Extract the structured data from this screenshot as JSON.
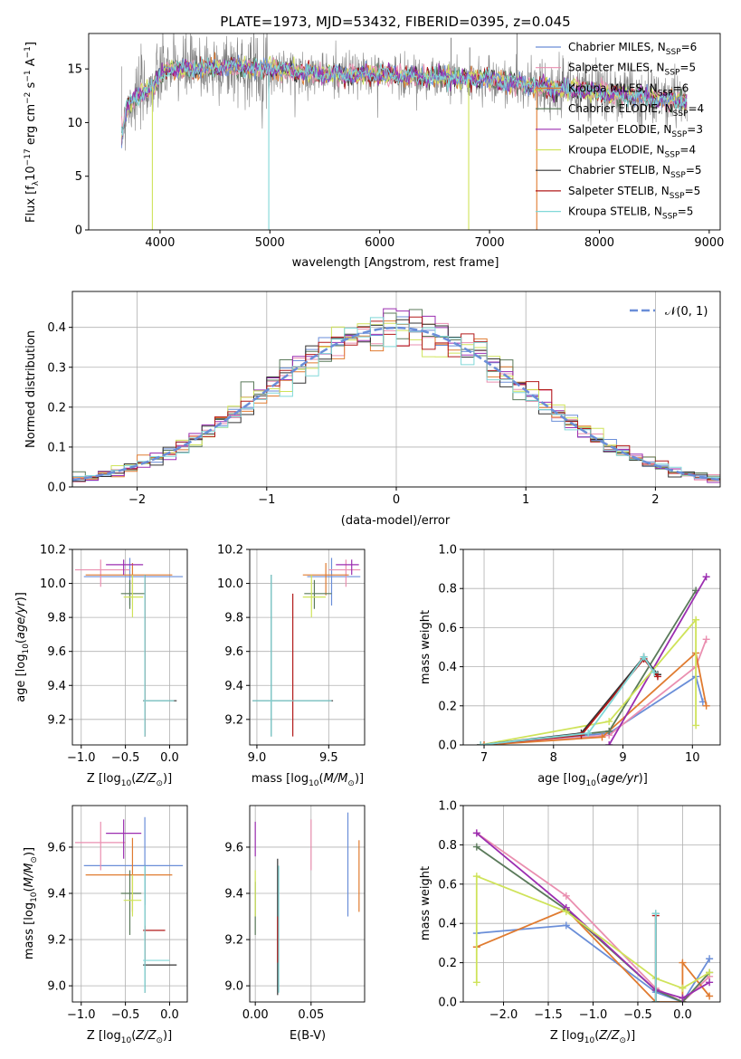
{
  "figure": {
    "title": "PLATE=1973, MJD=53432, FIBERID=0395, z=0.045"
  },
  "colors": {
    "chabrier_miles": "#6a8ed8",
    "salpeter_miles": "#ea8fb0",
    "kroupa_miles": "#e07b30",
    "chabrier_elodie": "#5a7a5a",
    "salpeter_elodie": "#9b2eb0",
    "kroupa_elodie": "#cfe35a",
    "chabrier_stelib": "#333333",
    "salpeter_stelib": "#b21a1a",
    "kroupa_stelib": "#80d8d8",
    "gauss": "#6a8ed8",
    "data": "#808080"
  },
  "chart_data": [
    {
      "id": "spectrum",
      "type": "line",
      "title": "PLATE=1973, MJD=53432, FIBERID=0395, z=0.045",
      "xlabel": "wavelength [Angstrom, rest frame]",
      "ylabel_parts": [
        "Flux [f",
        "λ",
        "10",
        "−17",
        " erg cm",
        "−2",
        " s",
        "−1",
        " A",
        "−1",
        "]"
      ],
      "xlim": [
        3350,
        9100
      ],
      "ylim": [
        0,
        18.3
      ],
      "xticks": [
        4000,
        5000,
        6000,
        7000,
        8000,
        9000
      ],
      "yticks": [
        0,
        5,
        10,
        15
      ],
      "legend": [
        {
          "imf": "Chabrier",
          "lib": "MILES",
          "n": 6,
          "color_key": "chabrier_miles"
        },
        {
          "imf": "Salpeter",
          "lib": "MILES",
          "n": 5,
          "color_key": "salpeter_miles"
        },
        {
          "imf": "Kroupa",
          "lib": "MILES",
          "n": 6,
          "color_key": "kroupa_miles"
        },
        {
          "imf": "Chabrier",
          "lib": "ELODIE",
          "n": 4,
          "color_key": "chabrier_elodie"
        },
        {
          "imf": "Salpeter",
          "lib": "ELODIE",
          "n": 3,
          "color_key": "salpeter_elodie"
        },
        {
          "imf": "Kroupa",
          "lib": "ELODIE",
          "n": 4,
          "color_key": "kroupa_elodie"
        },
        {
          "imf": "Chabrier",
          "lib": "STELIB",
          "n": 5,
          "color_key": "chabrier_stelib"
        },
        {
          "imf": "Salpeter",
          "lib": "STELIB",
          "n": 5,
          "color_key": "salpeter_stelib"
        },
        {
          "imf": "Kroupa",
          "lib": "STELIB",
          "n": 5,
          "color_key": "kroupa_stelib"
        }
      ],
      "continuum": [
        [
          3650,
          9.0
        ],
        [
          3700,
          11.5
        ],
        [
          3800,
          12.5
        ],
        [
          3950,
          13.5
        ],
        [
          4050,
          15.0
        ],
        [
          4300,
          15.0
        ],
        [
          4600,
          15.2
        ],
        [
          5000,
          15.0
        ],
        [
          5500,
          14.5
        ],
        [
          6000,
          14.5
        ],
        [
          6500,
          14.2
        ],
        [
          7000,
          14.0
        ],
        [
          7500,
          13.3
        ],
        [
          8000,
          12.8
        ],
        [
          8500,
          12.3
        ],
        [
          8800,
          12.0
        ]
      ],
      "drops": [
        {
          "x": 3930,
          "y": 0.0,
          "color_key": "kroupa_elodie"
        },
        {
          "x": 4990,
          "y": 0.0,
          "color_key": "kroupa_stelib"
        },
        {
          "x": 6810,
          "y": 0.0,
          "color_key": "kroupa_elodie"
        },
        {
          "x": 7430,
          "y": 0.0,
          "color_key": "kroupa_miles"
        }
      ]
    },
    {
      "id": "residual_hist",
      "type": "line",
      "xlabel": "(data-model)/error",
      "ylabel": "Normed distribution",
      "xlim": [
        -2.5,
        2.5
      ],
      "ylim": [
        0,
        0.49
      ],
      "xticks": [
        -2,
        -1,
        0,
        1,
        2
      ],
      "yticks": [
        0.0,
        0.1,
        0.2,
        0.3,
        0.4
      ],
      "grid": true,
      "legend": {
        "label": "N(0,1)",
        "placement": "top-right"
      },
      "bins": {
        "start": -2.5,
        "width": 0.1,
        "count": 50
      }
    },
    {
      "id": "z_vs_age",
      "type": "scatter",
      "xlabel": "Z [log10(Z/Z⊙)]",
      "ylabel": "age  [log10(age/yr)]",
      "xlim": [
        -1.1,
        0.2
      ],
      "ylim": [
        9.05,
        10.2
      ],
      "xticks": [
        -1.0,
        -0.5,
        0.0
      ],
      "yticks": [
        9.2,
        9.4,
        9.6,
        9.8,
        10.0,
        10.2
      ],
      "grid": true,
      "crosses": [
        {
          "color_key": "chabrier_miles",
          "x": -0.45,
          "xlo": -0.97,
          "xhi": 0.15,
          "y": 10.04,
          "ylo": 9.87,
          "yhi": 10.15
        },
        {
          "color_key": "salpeter_miles",
          "x": -0.78,
          "xlo": -1.07,
          "xhi": -0.45,
          "y": 10.08,
          "ylo": 9.98,
          "yhi": 10.14
        },
        {
          "color_key": "kroupa_miles",
          "x": -0.42,
          "xlo": -0.95,
          "xhi": 0.03,
          "y": 10.05,
          "ylo": 9.93,
          "yhi": 10.12
        },
        {
          "color_key": "chabrier_elodie",
          "x": -0.45,
          "xlo": -0.55,
          "xhi": -0.28,
          "y": 9.94,
          "ylo": 9.85,
          "yhi": 10.02
        },
        {
          "color_key": "salpeter_elodie",
          "x": -0.52,
          "xlo": -0.72,
          "xhi": -0.3,
          "y": 10.11,
          "ylo": 10.05,
          "yhi": 10.14
        },
        {
          "color_key": "kroupa_elodie",
          "x": -0.42,
          "xlo": -0.52,
          "xhi": -0.3,
          "y": 9.92,
          "ylo": 9.8,
          "yhi": 10.05
        },
        {
          "color_key": "chabrier_stelib",
          "x": -0.28,
          "xlo": -0.3,
          "xhi": 0.08,
          "y": 9.31,
          "ylo": 9.1,
          "yhi": 10.05
        },
        {
          "color_key": "salpeter_stelib",
          "x": -0.28,
          "xlo": -0.3,
          "xhi": -0.27,
          "y": 9.31,
          "ylo": 9.1,
          "yhi": 10.05
        },
        {
          "color_key": "kroupa_stelib",
          "x": -0.28,
          "xlo": -0.3,
          "xhi": 0.05,
          "y": 9.31,
          "ylo": 9.1,
          "yhi": 10.05
        }
      ]
    },
    {
      "id": "mass_vs_age",
      "type": "scatter",
      "xlabel": "mass [log10(M/M⊙)]",
      "xlim": [
        8.95,
        9.75
      ],
      "ylim": [
        9.05,
        10.2
      ],
      "xticks": [
        9.0,
        9.5
      ],
      "yticks": [
        9.2,
        9.4,
        9.6,
        9.8,
        10.0,
        10.2
      ],
      "grid": true,
      "crosses": [
        {
          "color_key": "chabrier_miles",
          "x": 9.52,
          "xlo": 9.35,
          "xhi": 9.72,
          "y": 10.04,
          "ylo": 9.87,
          "yhi": 10.15
        },
        {
          "color_key": "salpeter_miles",
          "x": 9.62,
          "xlo": 9.5,
          "xhi": 9.72,
          "y": 10.08,
          "ylo": 9.98,
          "yhi": 10.14
        },
        {
          "color_key": "kroupa_miles",
          "x": 9.48,
          "xlo": 9.32,
          "xhi": 9.64,
          "y": 10.05,
          "ylo": 9.93,
          "yhi": 10.12
        },
        {
          "color_key": "chabrier_elodie",
          "x": 9.4,
          "xlo": 9.33,
          "xhi": 9.52,
          "y": 9.94,
          "ylo": 9.85,
          "yhi": 10.02
        },
        {
          "color_key": "salpeter_elodie",
          "x": 9.66,
          "xlo": 9.55,
          "xhi": 9.71,
          "y": 10.11,
          "ylo": 10.05,
          "yhi": 10.14
        },
        {
          "color_key": "kroupa_elodie",
          "x": 9.38,
          "xlo": 9.32,
          "xhi": 9.48,
          "y": 9.92,
          "ylo": 9.8,
          "yhi": 10.05
        },
        {
          "color_key": "chabrier_stelib",
          "x": 9.1,
          "xlo": 8.97,
          "xhi": 9.53,
          "y": 9.31,
          "ylo": 9.1,
          "yhi": 10.05
        },
        {
          "color_key": "salpeter_stelib",
          "x": 9.25,
          "xlo": 9.24,
          "xhi": 9.26,
          "y": 9.31,
          "ylo": 9.1,
          "yhi": 9.94
        },
        {
          "color_key": "kroupa_stelib",
          "x": 9.1,
          "xlo": 8.97,
          "xhi": 9.52,
          "y": 9.31,
          "ylo": 9.1,
          "yhi": 10.05
        }
      ]
    },
    {
      "id": "age_vs_weight",
      "type": "line",
      "xlabel": "age  [log10(age/yr)]",
      "ylabel": "mass weight",
      "xlim": [
        6.7,
        10.4
      ],
      "ylim": [
        0,
        1.0
      ],
      "xticks": [
        7,
        8,
        9,
        10
      ],
      "yticks": [
        0.0,
        0.2,
        0.4,
        0.6,
        0.8,
        1.0
      ],
      "grid": true,
      "series": [
        {
          "color_key": "chabrier_miles",
          "points": [
            [
              6.95,
              0.0
            ],
            [
              8.8,
              0.06
            ],
            [
              10.05,
              0.35
            ],
            [
              10.15,
              0.22
            ]
          ]
        },
        {
          "color_key": "salpeter_miles",
          "points": [
            [
              7.0,
              0.0
            ],
            [
              8.8,
              0.05
            ],
            [
              10.05,
              0.4
            ],
            [
              10.2,
              0.54
            ]
          ]
        },
        {
          "color_key": "kroupa_miles",
          "points": [
            [
              7.0,
              0.0
            ],
            [
              8.7,
              0.04
            ],
            [
              10.05,
              0.47
            ],
            [
              10.2,
              0.2
            ]
          ]
        },
        {
          "color_key": "chabrier_elodie",
          "points": [
            [
              6.95,
              0.0
            ],
            [
              8.8,
              0.07
            ],
            [
              10.05,
              0.79
            ]
          ]
        },
        {
          "color_key": "salpeter_elodie",
          "points": [
            [
              8.8,
              0.0
            ],
            [
              10.2,
              0.86
            ]
          ]
        },
        {
          "color_key": "kroupa_elodie",
          "points": [
            [
              6.95,
              0.0
            ],
            [
              8.8,
              0.12
            ],
            [
              10.05,
              0.64
            ],
            [
              10.05,
              0.1
            ]
          ]
        },
        {
          "color_key": "chabrier_stelib",
          "points": [
            [
              6.95,
              0.0
            ],
            [
              8.4,
              0.06
            ],
            [
              9.3,
              0.45
            ],
            [
              9.5,
              0.36
            ]
          ]
        },
        {
          "color_key": "salpeter_stelib",
          "points": [
            [
              6.95,
              0.0
            ],
            [
              8.4,
              0.05
            ],
            [
              9.3,
              0.44
            ],
            [
              9.5,
              0.35
            ]
          ]
        },
        {
          "color_key": "kroupa_stelib",
          "points": [
            [
              6.95,
              0.0
            ],
            [
              8.5,
              0.06
            ],
            [
              9.3,
              0.45
            ],
            [
              9.45,
              0.37
            ]
          ]
        }
      ]
    },
    {
      "id": "z_vs_mass",
      "type": "scatter",
      "xlabel": "Z [log10(Z/Z⊙)]",
      "ylabel": "mass [log10(M/M⊙)]",
      "xlim": [
        -1.1,
        0.2
      ],
      "ylim": [
        8.93,
        9.78
      ],
      "xticks": [
        -1.0,
        -0.5,
        0.0
      ],
      "yticks": [
        9.0,
        9.2,
        9.4,
        9.6
      ],
      "grid": true,
      "crosses": [
        {
          "color_key": "chabrier_miles",
          "x": -0.28,
          "xlo": -0.97,
          "xhi": 0.15,
          "y": 9.52,
          "ylo": 9.35,
          "yhi": 9.73
        },
        {
          "color_key": "salpeter_miles",
          "x": -0.78,
          "xlo": -1.07,
          "xhi": -0.5,
          "y": 9.62,
          "ylo": 9.5,
          "yhi": 9.71
        },
        {
          "color_key": "kroupa_miles",
          "x": -0.42,
          "xlo": -0.95,
          "xhi": 0.03,
          "y": 9.48,
          "ylo": 9.32,
          "yhi": 9.64
        },
        {
          "color_key": "chabrier_elodie",
          "x": -0.45,
          "xlo": -0.55,
          "xhi": -0.32,
          "y": 9.4,
          "ylo": 9.22,
          "yhi": 9.5
        },
        {
          "color_key": "salpeter_elodie",
          "x": -0.52,
          "xlo": -0.72,
          "xhi": -0.32,
          "y": 9.66,
          "ylo": 9.55,
          "yhi": 9.72
        },
        {
          "color_key": "kroupa_elodie",
          "x": -0.42,
          "xlo": -0.52,
          "xhi": -0.32,
          "y": 9.37,
          "ylo": 9.3,
          "yhi": 9.48
        },
        {
          "color_key": "chabrier_stelib",
          "x": -0.28,
          "xlo": -0.3,
          "xhi": 0.08,
          "y": 9.09,
          "ylo": 8.97,
          "yhi": 9.52
        },
        {
          "color_key": "salpeter_stelib",
          "x": -0.28,
          "xlo": -0.3,
          "xhi": -0.05,
          "y": 9.24,
          "ylo": 9.1,
          "yhi": 9.26
        },
        {
          "color_key": "kroupa_stelib",
          "x": -0.28,
          "xlo": -0.3,
          "xhi": 0.0,
          "y": 9.11,
          "ylo": 8.97,
          "yhi": 9.52
        }
      ]
    },
    {
      "id": "ebv_vs_mass",
      "type": "scatter",
      "xlabel": "E(B-V)",
      "xlim": [
        -0.005,
        0.098
      ],
      "ylim": [
        8.93,
        9.78
      ],
      "xticks": [
        0.0,
        0.05
      ],
      "yticks": [
        9.0,
        9.2,
        9.4,
        9.6
      ],
      "grid": true,
      "bars": [
        {
          "color_key": "chabrier_miles",
          "x": 0.083,
          "ylo": 9.3,
          "yhi": 9.75
        },
        {
          "color_key": "salpeter_miles",
          "x": 0.05,
          "ylo": 9.5,
          "yhi": 9.72
        },
        {
          "color_key": "kroupa_miles",
          "x": 0.093,
          "ylo": 9.32,
          "yhi": 9.63
        },
        {
          "color_key": "chabrier_elodie",
          "x": 0.0,
          "ylo": 9.22,
          "yhi": 9.45
        },
        {
          "color_key": "salpeter_elodie",
          "x": 0.0,
          "ylo": 9.56,
          "yhi": 9.71
        },
        {
          "color_key": "kroupa_elodie",
          "x": 0.0,
          "ylo": 9.3,
          "yhi": 9.5
        },
        {
          "color_key": "chabrier_stelib",
          "x": 0.02,
          "ylo": 8.96,
          "yhi": 9.55
        },
        {
          "color_key": "salpeter_stelib",
          "x": 0.02,
          "ylo": 9.1,
          "yhi": 9.3
        },
        {
          "color_key": "kroupa_stelib",
          "x": 0.021,
          "ylo": 8.97,
          "yhi": 9.52
        }
      ]
    },
    {
      "id": "z_vs_weight",
      "type": "line",
      "xlabel": "Z [log10(Z/Z⊙)]",
      "ylabel": "mass weight",
      "xlim": [
        -2.45,
        0.42
      ],
      "ylim": [
        0,
        1.0
      ],
      "xticks": [
        -2.0,
        -1.5,
        -1.0,
        -0.5,
        0.0
      ],
      "yticks": [
        0.0,
        0.2,
        0.4,
        0.6,
        0.8,
        1.0
      ],
      "grid": true,
      "series": [
        {
          "color_key": "chabrier_miles",
          "points": [
            [
              -2.3,
              0.35
            ],
            [
              -1.3,
              0.39
            ],
            [
              -0.3,
              0.05
            ],
            [
              0.0,
              0.0
            ],
            [
              0.3,
              0.22
            ]
          ]
        },
        {
          "color_key": "salpeter_miles",
          "points": [
            [
              -2.3,
              0.86
            ],
            [
              -1.3,
              0.54
            ],
            [
              -0.3,
              0.07
            ],
            [
              0.0,
              0.0
            ],
            [
              0.3,
              0.13
            ]
          ]
        },
        {
          "color_key": "kroupa_miles",
          "points": [
            [
              -2.3,
              0.28
            ],
            [
              -1.3,
              0.47
            ],
            [
              -0.3,
              0.0
            ],
            [
              0.0,
              0.0
            ],
            [
              0.0,
              0.2
            ],
            [
              0.3,
              0.03
            ]
          ]
        },
        {
          "color_key": "chabrier_elodie",
          "points": [
            [
              -2.3,
              0.79
            ],
            [
              -1.3,
              0.47
            ],
            [
              -0.3,
              0.06
            ],
            [
              0.0,
              0.0
            ],
            [
              0.3,
              0.15
            ]
          ]
        },
        {
          "color_key": "salpeter_elodie",
          "points": [
            [
              -2.3,
              0.86
            ],
            [
              -1.3,
              0.48
            ],
            [
              -0.3,
              0.06
            ],
            [
              0.0,
              0.02
            ],
            [
              0.3,
              0.1
            ]
          ]
        },
        {
          "color_key": "kroupa_elodie",
          "points": [
            [
              -2.3,
              0.1
            ],
            [
              -2.3,
              0.64
            ],
            [
              -1.3,
              0.46
            ],
            [
              -0.3,
              0.12
            ],
            [
              0.0,
              0.07
            ],
            [
              0.3,
              0.15
            ]
          ]
        },
        {
          "color_key": "chabrier_stelib",
          "points": [
            [
              -0.3,
              0.0
            ],
            [
              -0.3,
              0.45
            ]
          ]
        },
        {
          "color_key": "salpeter_stelib",
          "points": [
            [
              -0.3,
              0.0
            ],
            [
              -0.3,
              0.44
            ]
          ]
        },
        {
          "color_key": "kroupa_stelib",
          "points": [
            [
              -0.3,
              0.0
            ],
            [
              -0.3,
              0.45
            ]
          ]
        }
      ]
    }
  ]
}
